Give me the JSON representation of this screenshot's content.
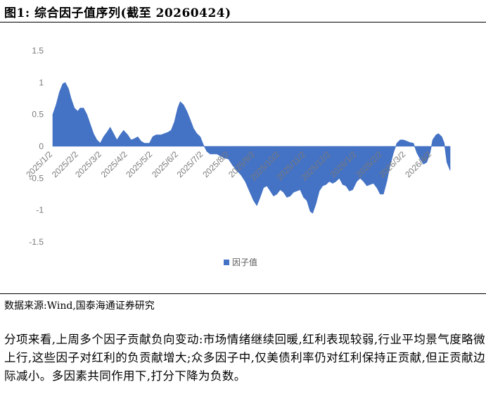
{
  "header": {
    "figure_title": "图1:  综合因子值序列(截至 20260424)"
  },
  "source_text": "数据来源:Wind,国泰海通证券研究",
  "paragraph": "分项来看,上周多个因子贡献负向变动:市场情绪继续回暖,红利表现较弱,行业平均景气度略微上行,这些因子对红利的负贡献增大;众多因子中,仅美债利率仍对红利保持正贡献,但正贡献边际减小。多因素共同作用下,打分下降为负数。",
  "chart_data": {
    "type": "area",
    "title": "",
    "xlabel": "",
    "ylabel": "",
    "ylim": [
      -1.5,
      1.5
    ],
    "yticks": [
      1.5,
      1,
      0.5,
      0,
      -0.5,
      -1,
      -1.5
    ],
    "ytick_labels": [
      "1.5",
      "1",
      "0.5",
      "0",
      "-0.5",
      "-1",
      "-1.5"
    ],
    "xticks": [
      "2025/1/2",
      "2025/2/2",
      "2025/3/2",
      "2025/4/2",
      "2025/5/2",
      "2025/6/2",
      "2025/7/2",
      "2025/8/2",
      "2025/9/2",
      "2025/10/2",
      "2025/11/2",
      "2025/12/2",
      "2026/1/2",
      "2026/2/2",
      "2026/3/2",
      "2026/4/2"
    ],
    "x_start": "2025/1/2",
    "x_end": "2026/4/24",
    "color": "#4472C4",
    "legend": {
      "label": "因子值",
      "position": "bottom"
    },
    "series": [
      {
        "name": "因子值",
        "points": [
          [
            "2025/1/2",
            0.5
          ],
          [
            "2025/1/6",
            0.65
          ],
          [
            "2025/1/10",
            0.85
          ],
          [
            "2025/1/14",
            0.98
          ],
          [
            "2025/1/17",
            1.0
          ],
          [
            "2025/1/21",
            0.9
          ],
          [
            "2025/1/24",
            0.75
          ],
          [
            "2025/1/28",
            0.6
          ],
          [
            "2025/2/1",
            0.55
          ],
          [
            "2025/2/4",
            0.6
          ],
          [
            "2025/2/8",
            0.6
          ],
          [
            "2025/2/12",
            0.5
          ],
          [
            "2025/2/16",
            0.35
          ],
          [
            "2025/2/20",
            0.2
          ],
          [
            "2025/2/24",
            0.1
          ],
          [
            "2025/2/28",
            0.05
          ],
          [
            "2025/3/4",
            0.15
          ],
          [
            "2025/3/8",
            0.22
          ],
          [
            "2025/3/12",
            0.3
          ],
          [
            "2025/3/16",
            0.2
          ],
          [
            "2025/3/20",
            0.1
          ],
          [
            "2025/3/24",
            0.18
          ],
          [
            "2025/3/28",
            0.25
          ],
          [
            "2025/4/2",
            0.18
          ],
          [
            "2025/4/6",
            0.1
          ],
          [
            "2025/4/10",
            0.12
          ],
          [
            "2025/4/14",
            0.15
          ],
          [
            "2025/4/18",
            0.08
          ],
          [
            "2025/4/22",
            0.05
          ],
          [
            "2025/4/28",
            0.05
          ],
          [
            "2025/5/2",
            0.15
          ],
          [
            "2025/5/6",
            0.18
          ],
          [
            "2025/5/12",
            0.18
          ],
          [
            "2025/5/16",
            0.2
          ],
          [
            "2025/5/20",
            0.22
          ],
          [
            "2025/5/24",
            0.25
          ],
          [
            "2025/5/28",
            0.38
          ],
          [
            "2025/6/1",
            0.6
          ],
          [
            "2025/6/4",
            0.7
          ],
          [
            "2025/6/8",
            0.65
          ],
          [
            "2025/6/12",
            0.55
          ],
          [
            "2025/6/16",
            0.42
          ],
          [
            "2025/6/20",
            0.28
          ],
          [
            "2025/6/24",
            0.2
          ],
          [
            "2025/6/28",
            0.15
          ],
          [
            "2025/7/2",
            0.02
          ],
          [
            "2025/7/6",
            -0.08
          ],
          [
            "2025/7/10",
            -0.12
          ],
          [
            "2025/7/14",
            -0.12
          ],
          [
            "2025/7/18",
            -0.12
          ],
          [
            "2025/7/22",
            -0.15
          ],
          [
            "2025/7/26",
            -0.18
          ],
          [
            "2025/8/1",
            -0.2
          ],
          [
            "2025/8/6",
            -0.3
          ],
          [
            "2025/8/11",
            -0.38
          ],
          [
            "2025/8/16",
            -0.45
          ],
          [
            "2025/8/21",
            -0.55
          ],
          [
            "2025/8/26",
            -0.7
          ],
          [
            "2025/8/31",
            -0.85
          ],
          [
            "2025/9/4",
            -0.93
          ],
          [
            "2025/9/8",
            -0.8
          ],
          [
            "2025/9/12",
            -0.65
          ],
          [
            "2025/9/16",
            -0.62
          ],
          [
            "2025/9/20",
            -0.7
          ],
          [
            "2025/9/24",
            -0.78
          ],
          [
            "2025/9/28",
            -0.75
          ],
          [
            "2025/10/2",
            -0.68
          ],
          [
            "2025/10/6",
            -0.72
          ],
          [
            "2025/10/10",
            -0.8
          ],
          [
            "2025/10/14",
            -0.78
          ],
          [
            "2025/10/18",
            -0.72
          ],
          [
            "2025/10/22",
            -0.7
          ],
          [
            "2025/10/26",
            -0.68
          ],
          [
            "2025/10/30",
            -0.8
          ],
          [
            "2025/11/3",
            -0.85
          ],
          [
            "2025/11/7",
            -1.02
          ],
          [
            "2025/11/10",
            -1.05
          ],
          [
            "2025/11/14",
            -0.9
          ],
          [
            "2025/11/18",
            -0.7
          ],
          [
            "2025/11/22",
            -0.62
          ],
          [
            "2025/11/26",
            -0.6
          ],
          [
            "2025/11/30",
            -0.55
          ],
          [
            "2025/12/4",
            -0.58
          ],
          [
            "2025/12/8",
            -0.55
          ],
          [
            "2025/12/12",
            -0.5
          ],
          [
            "2025/12/16",
            -0.6
          ],
          [
            "2025/12/20",
            -0.62
          ],
          [
            "2025/12/24",
            -0.7
          ],
          [
            "2025/12/28",
            -0.68
          ],
          [
            "2026/1/2",
            -0.55
          ],
          [
            "2026/1/6",
            -0.5
          ],
          [
            "2026/1/10",
            -0.55
          ],
          [
            "2026/1/14",
            -0.62
          ],
          [
            "2026/1/18",
            -0.6
          ],
          [
            "2026/1/22",
            -0.58
          ],
          [
            "2026/1/26",
            -0.65
          ],
          [
            "2026/1/30",
            -0.75
          ],
          [
            "2026/2/3",
            -0.75
          ],
          [
            "2026/2/7",
            -0.55
          ],
          [
            "2026/2/11",
            -0.3
          ],
          [
            "2026/2/15",
            -0.1
          ],
          [
            "2026/2/19",
            0.05
          ],
          [
            "2026/2/23",
            0.1
          ],
          [
            "2026/2/27",
            0.1
          ],
          [
            "2026/3/3",
            0.08
          ],
          [
            "2026/3/7",
            0.06
          ],
          [
            "2026/3/11",
            0.05
          ],
          [
            "2026/3/15",
            -0.1
          ],
          [
            "2026/3/19",
            -0.2
          ],
          [
            "2026/3/23",
            -0.28
          ],
          [
            "2026/3/27",
            -0.25
          ],
          [
            "2026/3/31",
            -0.1
          ],
          [
            "2026/4/3",
            0.1
          ],
          [
            "2026/4/7",
            0.18
          ],
          [
            "2026/4/10",
            0.2
          ],
          [
            "2026/4/14",
            0.15
          ],
          [
            "2026/4/17",
            0.05
          ],
          [
            "2026/4/20",
            -0.25
          ],
          [
            "2026/4/24",
            -0.38
          ]
        ]
      }
    ]
  }
}
